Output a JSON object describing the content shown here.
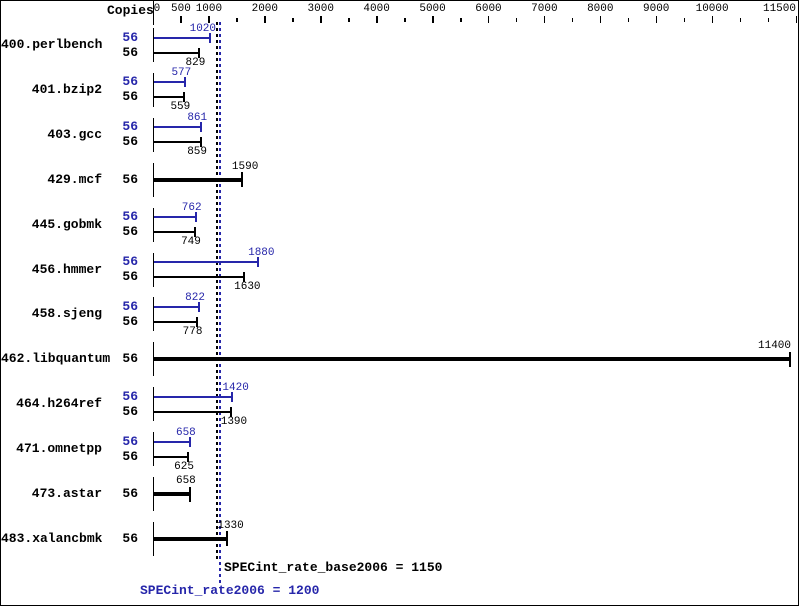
{
  "copies_header": "Copies",
  "chart_data": {
    "type": "bar",
    "orientation": "horizontal",
    "categories": [
      "400.perlbench",
      "401.bzip2",
      "403.gcc",
      "429.mcf",
      "445.gobmk",
      "456.hmmer",
      "458.sjeng",
      "462.libquantum",
      "464.h264ref",
      "471.omnetpp",
      "473.astar",
      "483.xalancbmk"
    ],
    "copies": [
      56,
      56,
      56,
      56,
      56,
      56,
      56,
      56,
      56,
      56,
      56,
      56
    ],
    "series": [
      {
        "name": "peak",
        "color": "#2626aa",
        "values": [
          1020,
          577,
          861,
          1590,
          762,
          1880,
          822,
          11400,
          1420,
          658,
          658,
          1330
        ]
      },
      {
        "name": "base",
        "color": "#000000",
        "values": [
          829,
          559,
          859,
          1590,
          749,
          1630,
          778,
          11400,
          1390,
          625,
          658,
          1330
        ]
      }
    ],
    "xlim": [
      0,
      11500
    ],
    "x_axis_labeled_ticks": [
      0,
      500,
      1000,
      2000,
      3000,
      4000,
      5000,
      6000,
      7000,
      8000,
      9000,
      10000,
      11500
    ],
    "x_axis_minor_ticks": [
      1500,
      2500,
      3500,
      4500,
      5500,
      6500,
      7500,
      8500,
      9500,
      10500,
      11000
    ],
    "grid": "off",
    "legend": "none",
    "reference_lines": [
      {
        "name": "base",
        "value": 1150,
        "color": "#000000",
        "style": "dotted"
      },
      {
        "name": "peak",
        "value": 1200,
        "color": "#2626aa",
        "style": "dotted"
      }
    ]
  },
  "summary": {
    "base_label": "SPECint_rate_base2006 = 1150",
    "base_value": 1150,
    "peak_label": "SPECint_rate2006 = 1200",
    "peak_value": 1200
  },
  "colors": {
    "peak_blue": "#2626aa",
    "base_black": "#000000",
    "background": "#ffffff",
    "border": "#000000"
  }
}
